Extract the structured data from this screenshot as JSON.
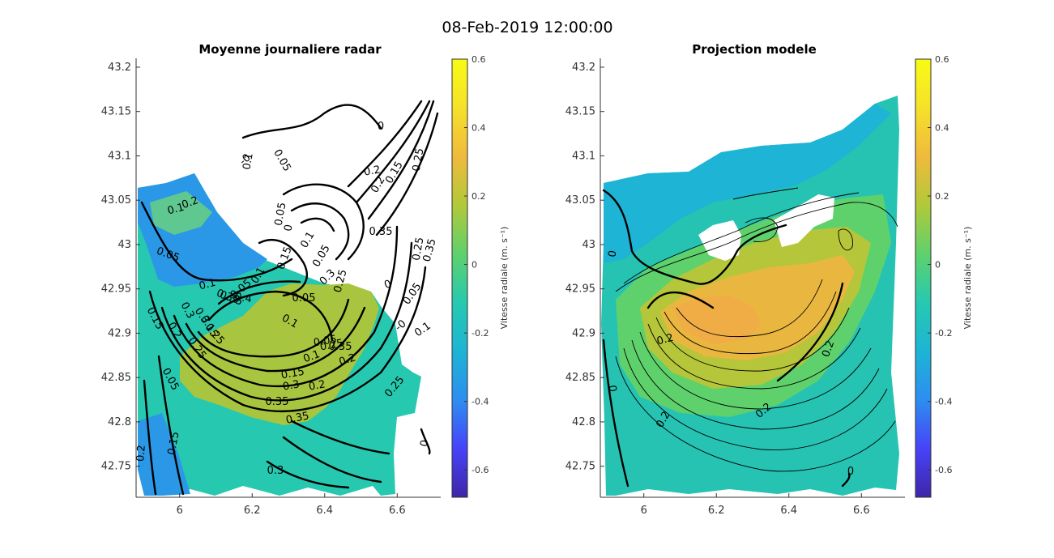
{
  "figure": {
    "title": "08-Feb-2019 12:00:00"
  },
  "colormap": {
    "name": "parula",
    "stops": [
      "#3e26a8",
      "#4743f8",
      "#2d8ef0",
      "#1db4d5",
      "#26c9b0",
      "#5fd16c",
      "#b1c93a",
      "#f0ba3c",
      "#f5e12a",
      "#f9fb15"
    ]
  },
  "chart_data": [
    {
      "type": "contour",
      "title": "Moyenne journaliere radar",
      "xlabel": "",
      "ylabel": "",
      "xlim": [
        5.88,
        6.72
      ],
      "ylim": [
        42.715,
        43.21
      ],
      "xticks": [
        "6",
        "6.2",
        "6.4",
        "6.6"
      ],
      "yticks": [
        "42.75",
        "42.8",
        "42.85",
        "42.9",
        "42.95",
        "43",
        "43.05",
        "43.1",
        "43.15",
        "43.2"
      ],
      "filled_field": "radial velocity (m/s), color scale -0.68 to 0.6",
      "contour_labels": [
        "0.05",
        "0.1",
        "0.15",
        "0.2",
        "0.25",
        "0.3",
        "0.35",
        "0.4",
        "0.05",
        "0.1",
        "0.15",
        "0.2",
        "0.25",
        "0.3",
        "0.35",
        "0.35",
        "0.3",
        "0.25",
        "0.2",
        "0.15",
        "0.1",
        "0.05",
        "0.05",
        "0",
        "0",
        "-0",
        "0.05",
        "0.1",
        "0.35",
        "0.25",
        "0.2",
        "0.15",
        "0.1",
        "0.05",
        "0.35",
        "0.3",
        "0.25",
        "0.2",
        "0.15",
        "0.1",
        "0.05",
        "0.2",
        "0.35",
        "-0",
        "0",
        "0.25",
        "0.1",
        "0.05",
        "0.35",
        "0.3",
        "0.25",
        "0.2",
        "0.15",
        "0.1",
        "0.05",
        "0"
      ],
      "colorbar": {
        "label": "Vitesse radiale (m. s⁻¹)",
        "range": [
          -0.68,
          0.6
        ],
        "ticks": [
          "0.6",
          "0.4",
          "0.2",
          "0",
          "-0.2",
          "-0.4",
          "-0.6"
        ]
      }
    },
    {
      "type": "contour",
      "title": "Projection modele",
      "xlabel": "",
      "ylabel": "",
      "xlim": [
        5.88,
        6.72
      ],
      "ylim": [
        42.715,
        43.21
      ],
      "xticks": [
        "6",
        "6.2",
        "6.4",
        "6.6"
      ],
      "yticks": [
        "42.75",
        "42.8",
        "42.85",
        "42.9",
        "42.95",
        "43",
        "43.05",
        "43.1",
        "43.15",
        "43.2"
      ],
      "filled_field": "radial velocity (m/s), color scale -0.68 to 0.6",
      "contour_labels": [
        "0",
        "0.2",
        "0.2",
        "0.2",
        "0.2",
        "0",
        "0"
      ],
      "colorbar": {
        "label": "Vitesse radiale (m. s⁻¹)",
        "range": [
          -0.68,
          0.6
        ],
        "ticks": [
          "0.6",
          "0.4",
          "0.2",
          "0",
          "-0.2",
          "-0.4",
          "-0.6"
        ]
      }
    }
  ]
}
